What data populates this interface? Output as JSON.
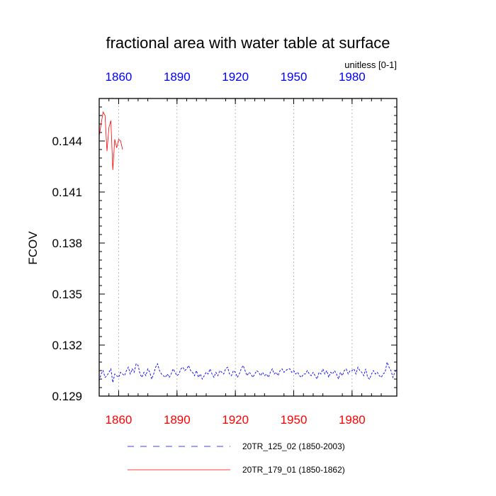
{
  "chart_data": {
    "type": "line",
    "title": "fractional area with water table at surface",
    "units": "unitless [0-1]",
    "ylabel": "FCOV",
    "xlim": [
      1850,
      2003
    ],
    "ylim": [
      0.129,
      0.1465
    ],
    "yticks": [
      "0.129",
      "0.132",
      "0.135",
      "0.138",
      "0.141",
      "0.144"
    ],
    "xticks_bottom": [
      "1860",
      "1890",
      "1920",
      "1950",
      "1980"
    ],
    "xticks_top": [
      "1860",
      "1890",
      "1920",
      "1950",
      "1980"
    ],
    "bottom_tick_color": "#ff0000",
    "top_tick_color": "#0000ff",
    "grid": "vertical dotted at 1860, 1890, 1920, 1950, 1980",
    "series": [
      {
        "name": "20TR_125_02 (1850-2003)",
        "color": "#0000ff",
        "style": "dashed",
        "x_start": 1850,
        "x_end": 2003,
        "values": [
          0.1299,
          0.1303,
          0.1305,
          0.1301,
          0.1302,
          0.1304,
          0.1306,
          0.1298,
          0.1303,
          0.1302,
          0.1301,
          0.1304,
          0.1303,
          0.1302,
          0.1305,
          0.1307,
          0.1303,
          0.1306,
          0.1304,
          0.1309,
          0.1308,
          0.1303,
          0.1301,
          0.1304,
          0.1302,
          0.1306,
          0.1304,
          0.13,
          0.1303,
          0.1307,
          0.1309,
          0.1305,
          0.1303,
          0.1302,
          0.1301,
          0.1303,
          0.1301,
          0.1303,
          0.1306,
          0.1304,
          0.1302,
          0.1303,
          0.1306,
          0.1307,
          0.1305,
          0.1306,
          0.1308,
          0.1305,
          0.1304,
          0.1302,
          0.1305,
          0.1301,
          0.1303,
          0.13,
          0.1302,
          0.1304,
          0.1303,
          0.1306,
          0.1303,
          0.1301,
          0.1304,
          0.1302,
          0.1305,
          0.1304,
          0.1303,
          0.1306,
          0.1307,
          0.1303,
          0.1302,
          0.1305,
          0.1304,
          0.1301,
          0.1303,
          0.1306,
          0.1308,
          0.1305,
          0.1302,
          0.1304,
          0.1303,
          0.1301,
          0.1303,
          0.1305,
          0.1304,
          0.1302,
          0.1304,
          0.1302,
          0.1303,
          0.1301,
          0.1304,
          0.1306,
          0.1303,
          0.1304,
          0.1302,
          0.1305,
          0.1306,
          0.1304,
          0.1305,
          0.1306,
          0.1306,
          0.1304,
          0.1305,
          0.1303,
          0.1304,
          0.1302,
          0.1301,
          0.1303,
          0.1303,
          0.1305,
          0.1303,
          0.1302,
          0.1304,
          0.1302,
          0.13,
          0.1304,
          0.1303,
          0.1306,
          0.1303,
          0.1305,
          0.1301,
          0.1304,
          0.1303,
          0.1305,
          0.1303,
          0.13,
          0.1304,
          0.1302,
          0.1305,
          0.1306,
          0.1303,
          0.1305,
          0.1305,
          0.1306,
          0.1303,
          0.1307,
          0.1305,
          0.1304,
          0.1302,
          0.1306,
          0.1301,
          0.13,
          0.1303,
          0.1305,
          0.1303,
          0.1304,
          0.1302,
          0.1301,
          0.1303,
          0.1304,
          0.131,
          0.1307,
          0.1305,
          0.1301,
          0.1304,
          0.1306
        ]
      },
      {
        "name": "20TR_179_01 (1850-1862)",
        "color": "#ff0000",
        "style": "solid",
        "x_start": 1850,
        "x_end": 1862,
        "values": [
          0.1443,
          0.145,
          0.1457,
          0.1455,
          0.1434,
          0.1448,
          0.1452,
          0.1423,
          0.1441,
          0.1436,
          0.1441,
          0.144,
          0.1435
        ]
      }
    ]
  }
}
